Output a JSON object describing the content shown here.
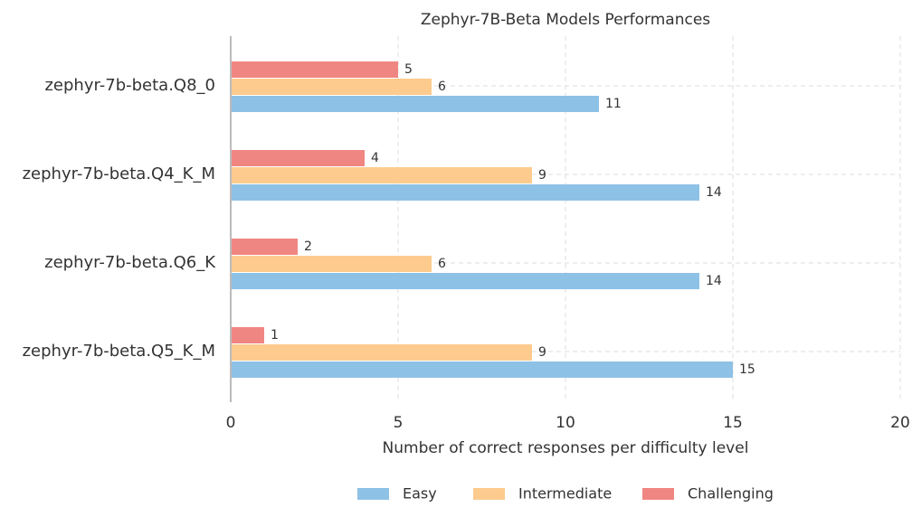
{
  "chart_data": {
    "type": "hbar",
    "title": "Zephyr-7B-Beta Models Performances",
    "xlabel": "Number of correct responses per difficulty level",
    "categories": [
      "zephyr-7b-beta.Q8_0",
      "zephyr-7b-beta.Q4_K_M",
      "zephyr-7b-beta.Q6_K",
      "zephyr-7b-beta.Q5_K_M"
    ],
    "series": [
      {
        "name": "Easy",
        "color": "#8ec1e6",
        "values": [
          11,
          14,
          14,
          15
        ]
      },
      {
        "name": "Intermediate",
        "color": "#fdcb8e",
        "values": [
          6,
          9,
          6,
          9
        ]
      },
      {
        "name": "Challenging",
        "color": "#f08681",
        "values": [
          5,
          4,
          2,
          1
        ]
      }
    ],
    "xlim": [
      0,
      20
    ],
    "xticks": [
      0,
      5,
      10,
      15,
      20
    ],
    "grid": true,
    "legend": "bottom"
  }
}
